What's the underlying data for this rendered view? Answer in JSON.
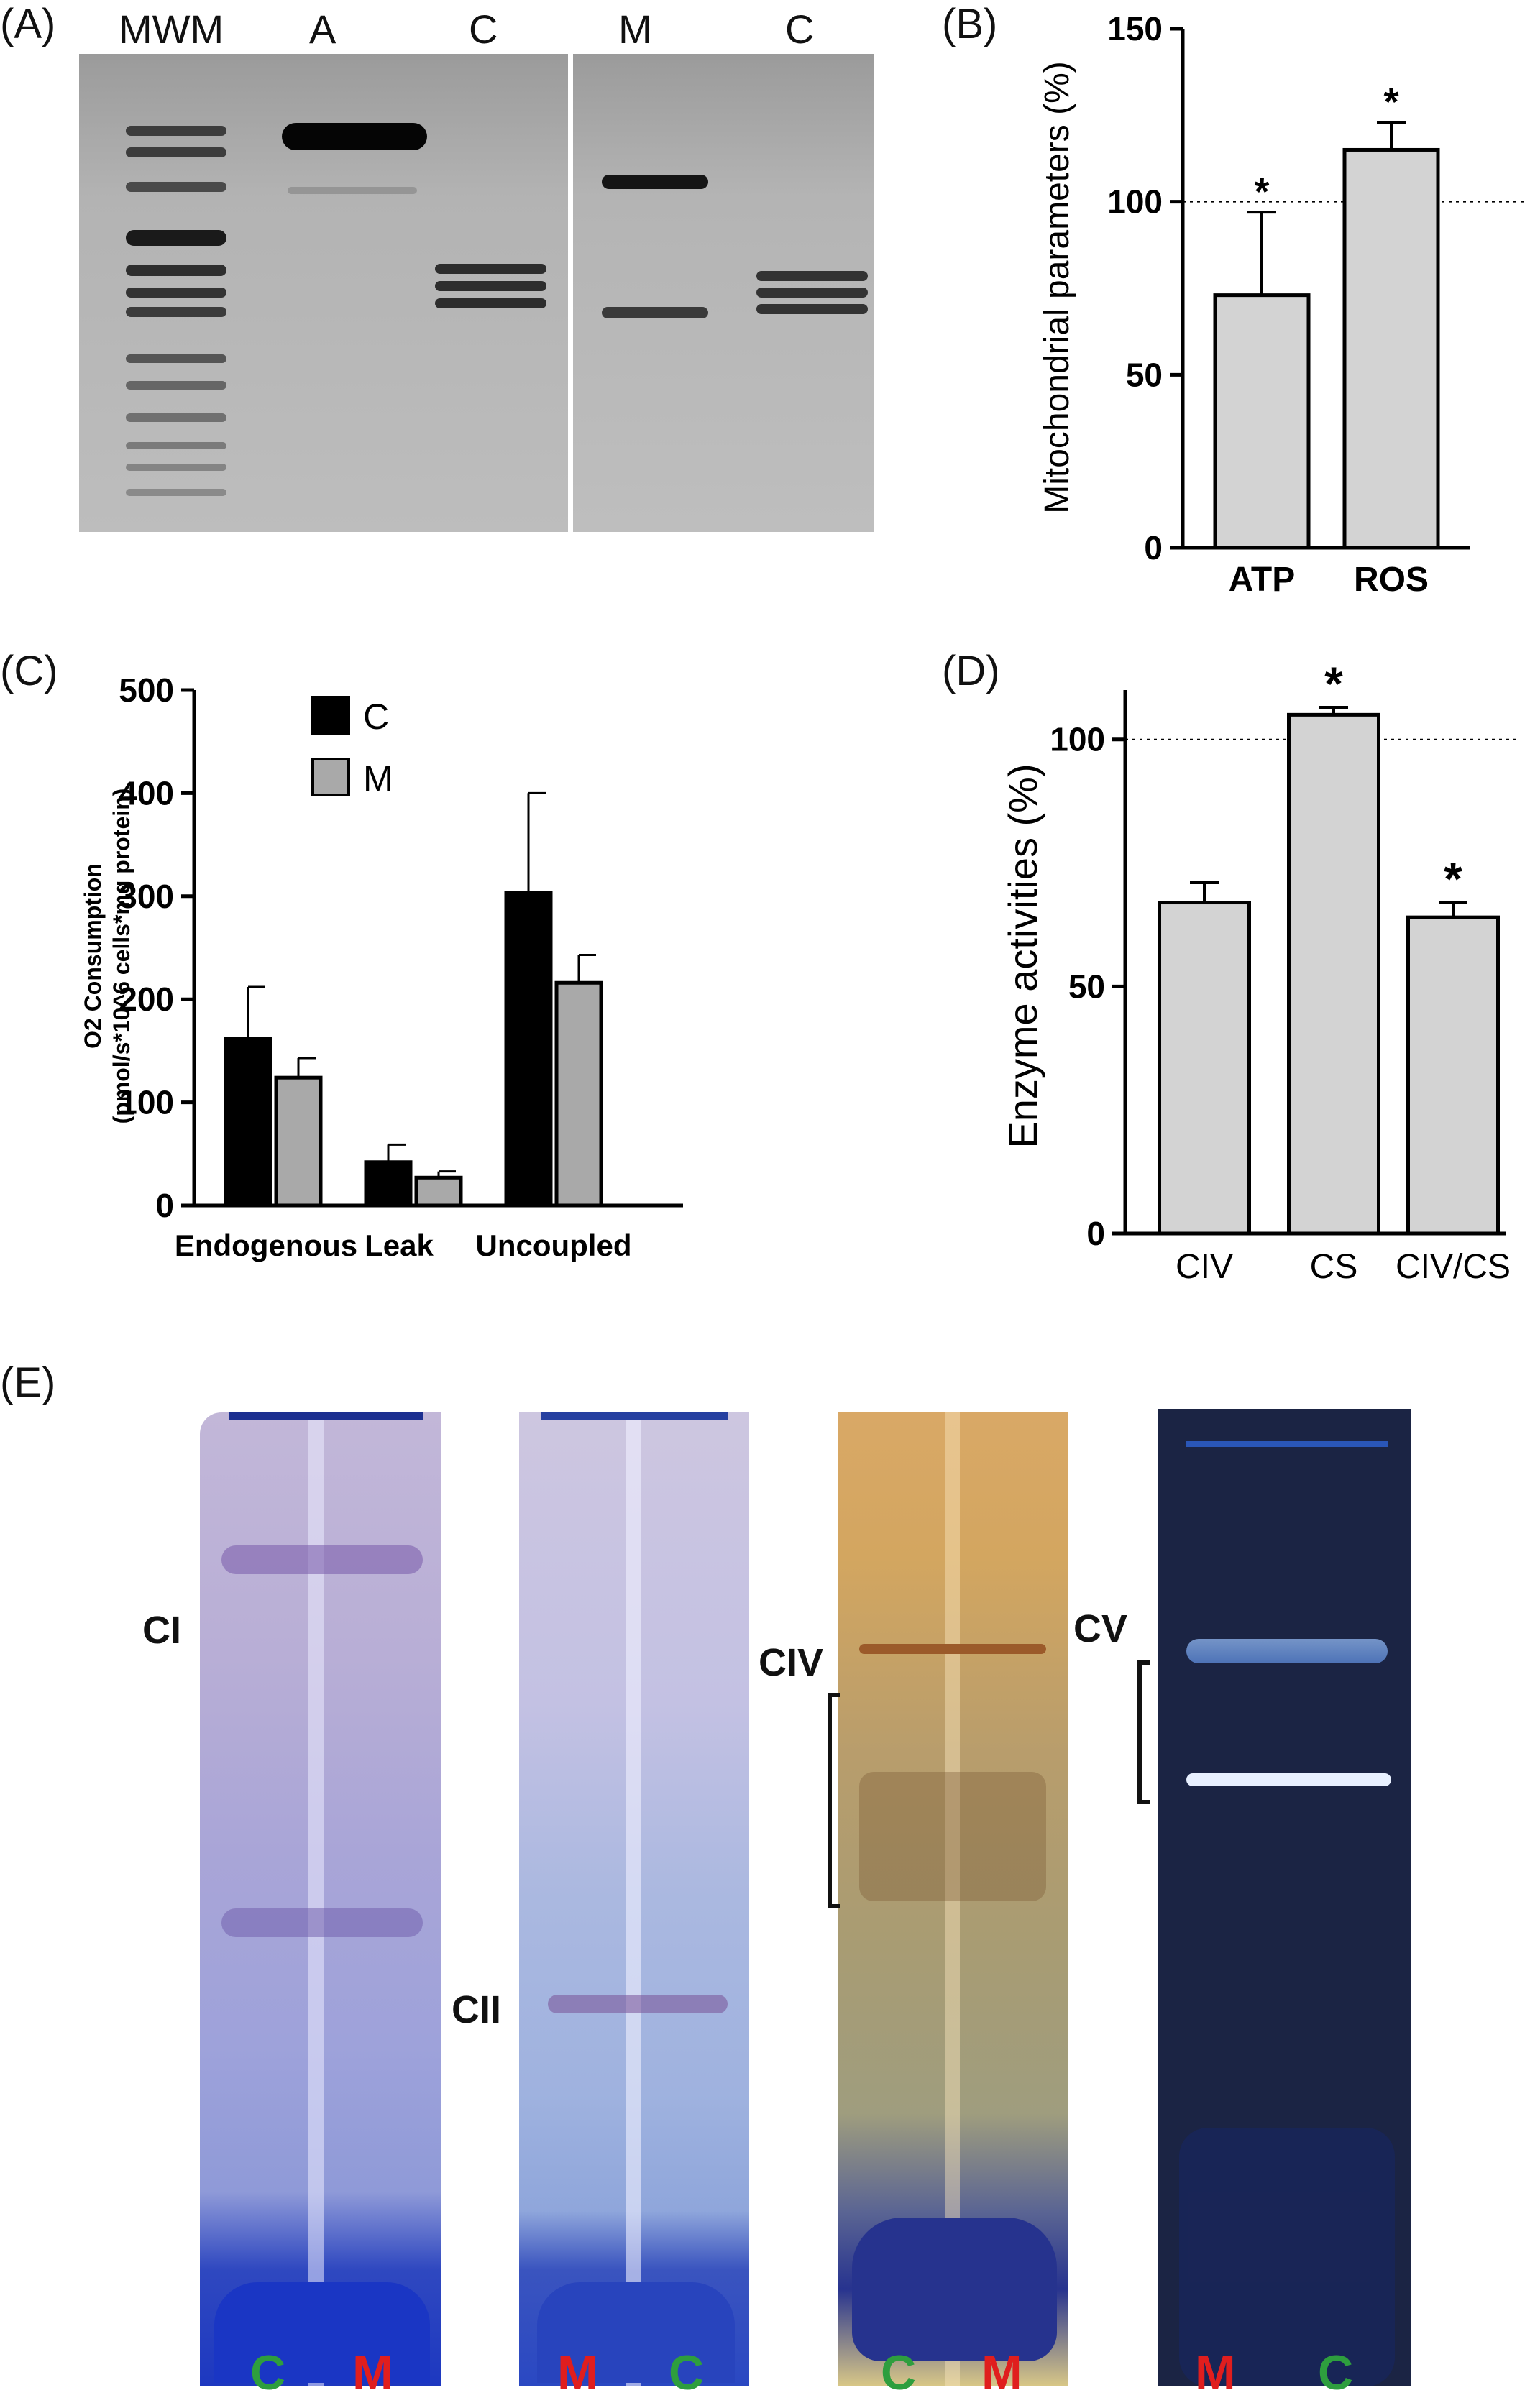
{
  "panels": {
    "A": {
      "letter": "(A)",
      "lanes": [
        "MWM",
        "A",
        "C",
        "M",
        "C"
      ]
    },
    "B": {
      "letter": "(B)"
    },
    "C": {
      "letter": "(C)"
    },
    "D": {
      "letter": "(D)"
    },
    "E": {
      "letter": "(E)",
      "complex_labels": [
        "CI",
        "CII",
        "CIV",
        "CV"
      ],
      "lane_labels": [
        [
          "C",
          "M"
        ],
        [
          "M",
          "C"
        ],
        [
          "C",
          "M"
        ],
        [
          "M",
          "C"
        ]
      ],
      "colors": {
        "C": "#2e9e3e",
        "M": "#e01e1e"
      }
    }
  },
  "chart_data": [
    {
      "panel": "B",
      "type": "bar",
      "categories": [
        "ATP",
        "ROS"
      ],
      "values": [
        73,
        115
      ],
      "errors": [
        24,
        8
      ],
      "significance": [
        "*",
        "*"
      ],
      "ylabel": "Mitochondrial parameters (%)",
      "yticks": [
        0,
        50,
        100,
        150
      ],
      "ylim": [
        0,
        150
      ],
      "reference_line": 100,
      "bar_color": "#d3d3d3"
    },
    {
      "panel": "C",
      "type": "bar",
      "categories": [
        "Endogenous",
        "Leak",
        "Uncoupled"
      ],
      "series": [
        {
          "name": "C",
          "values": [
            162,
            42,
            303
          ],
          "errors": [
            50,
            17,
            97
          ],
          "color": "#000000"
        },
        {
          "name": "M",
          "values": [
            124,
            27,
            216
          ],
          "errors": [
            19,
            6,
            27
          ],
          "color": "#a9a9a9"
        }
      ],
      "ylabel_line1": "O2 Consumption",
      "ylabel_line2": "(pmol/s*10^6 cells*mg protein)",
      "yticks": [
        0,
        100,
        200,
        300,
        400,
        500
      ],
      "ylim": [
        0,
        500
      ],
      "legend": "top-left"
    },
    {
      "panel": "D",
      "type": "bar",
      "categories": [
        "CIV",
        "CS",
        "CIV/CS"
      ],
      "values": [
        67,
        105,
        64
      ],
      "errors": [
        4,
        1.5,
        3
      ],
      "significance": [
        "",
        "*",
        "*"
      ],
      "ylabel": "Enzyme activities (%)",
      "yticks": [
        0,
        50,
        100
      ],
      "ylim": [
        0,
        110
      ],
      "reference_line": 100,
      "bar_color": "#d3d3d3"
    }
  ]
}
